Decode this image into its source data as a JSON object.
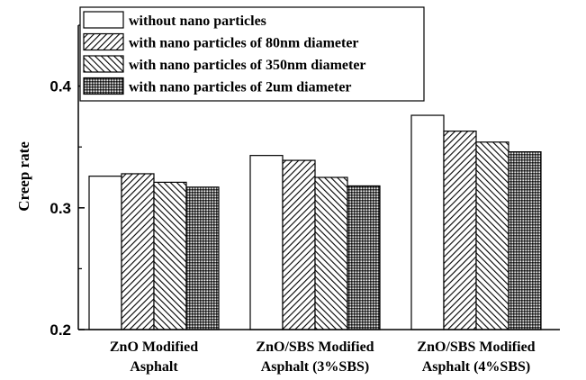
{
  "chart_data": {
    "type": "bar",
    "categories": [
      [
        "ZnO Modified",
        "Asphalt"
      ],
      [
        "ZnO/SBS Modified",
        "Asphalt (3%SBS)"
      ],
      [
        "ZnO/SBS Modified",
        "Asphalt (4%SBS)"
      ]
    ],
    "series": [
      {
        "name": "without nano particles",
        "pattern": "solid-white",
        "values": [
          0.326,
          0.343,
          0.376
        ]
      },
      {
        "name": "with nano particles of 80nm diameter",
        "pattern": "diagonal-forward",
        "values": [
          0.328,
          0.339,
          0.363
        ]
      },
      {
        "name": "with nano particles of 350nm diameter",
        "pattern": "diagonal-back",
        "values": [
          0.321,
          0.325,
          0.354
        ]
      },
      {
        "name": "with nano particles of 2um diameter",
        "pattern": "crosshatch-dense",
        "values": [
          0.317,
          0.318,
          0.346
        ]
      }
    ],
    "title": "",
    "xlabel": "",
    "ylabel": "Creep rate",
    "ylim": [
      0.2,
      0.45
    ],
    "yticks": [
      "0.2",
      "0.3",
      "0.4"
    ],
    "legend_position": "top-left",
    "grid": false
  }
}
